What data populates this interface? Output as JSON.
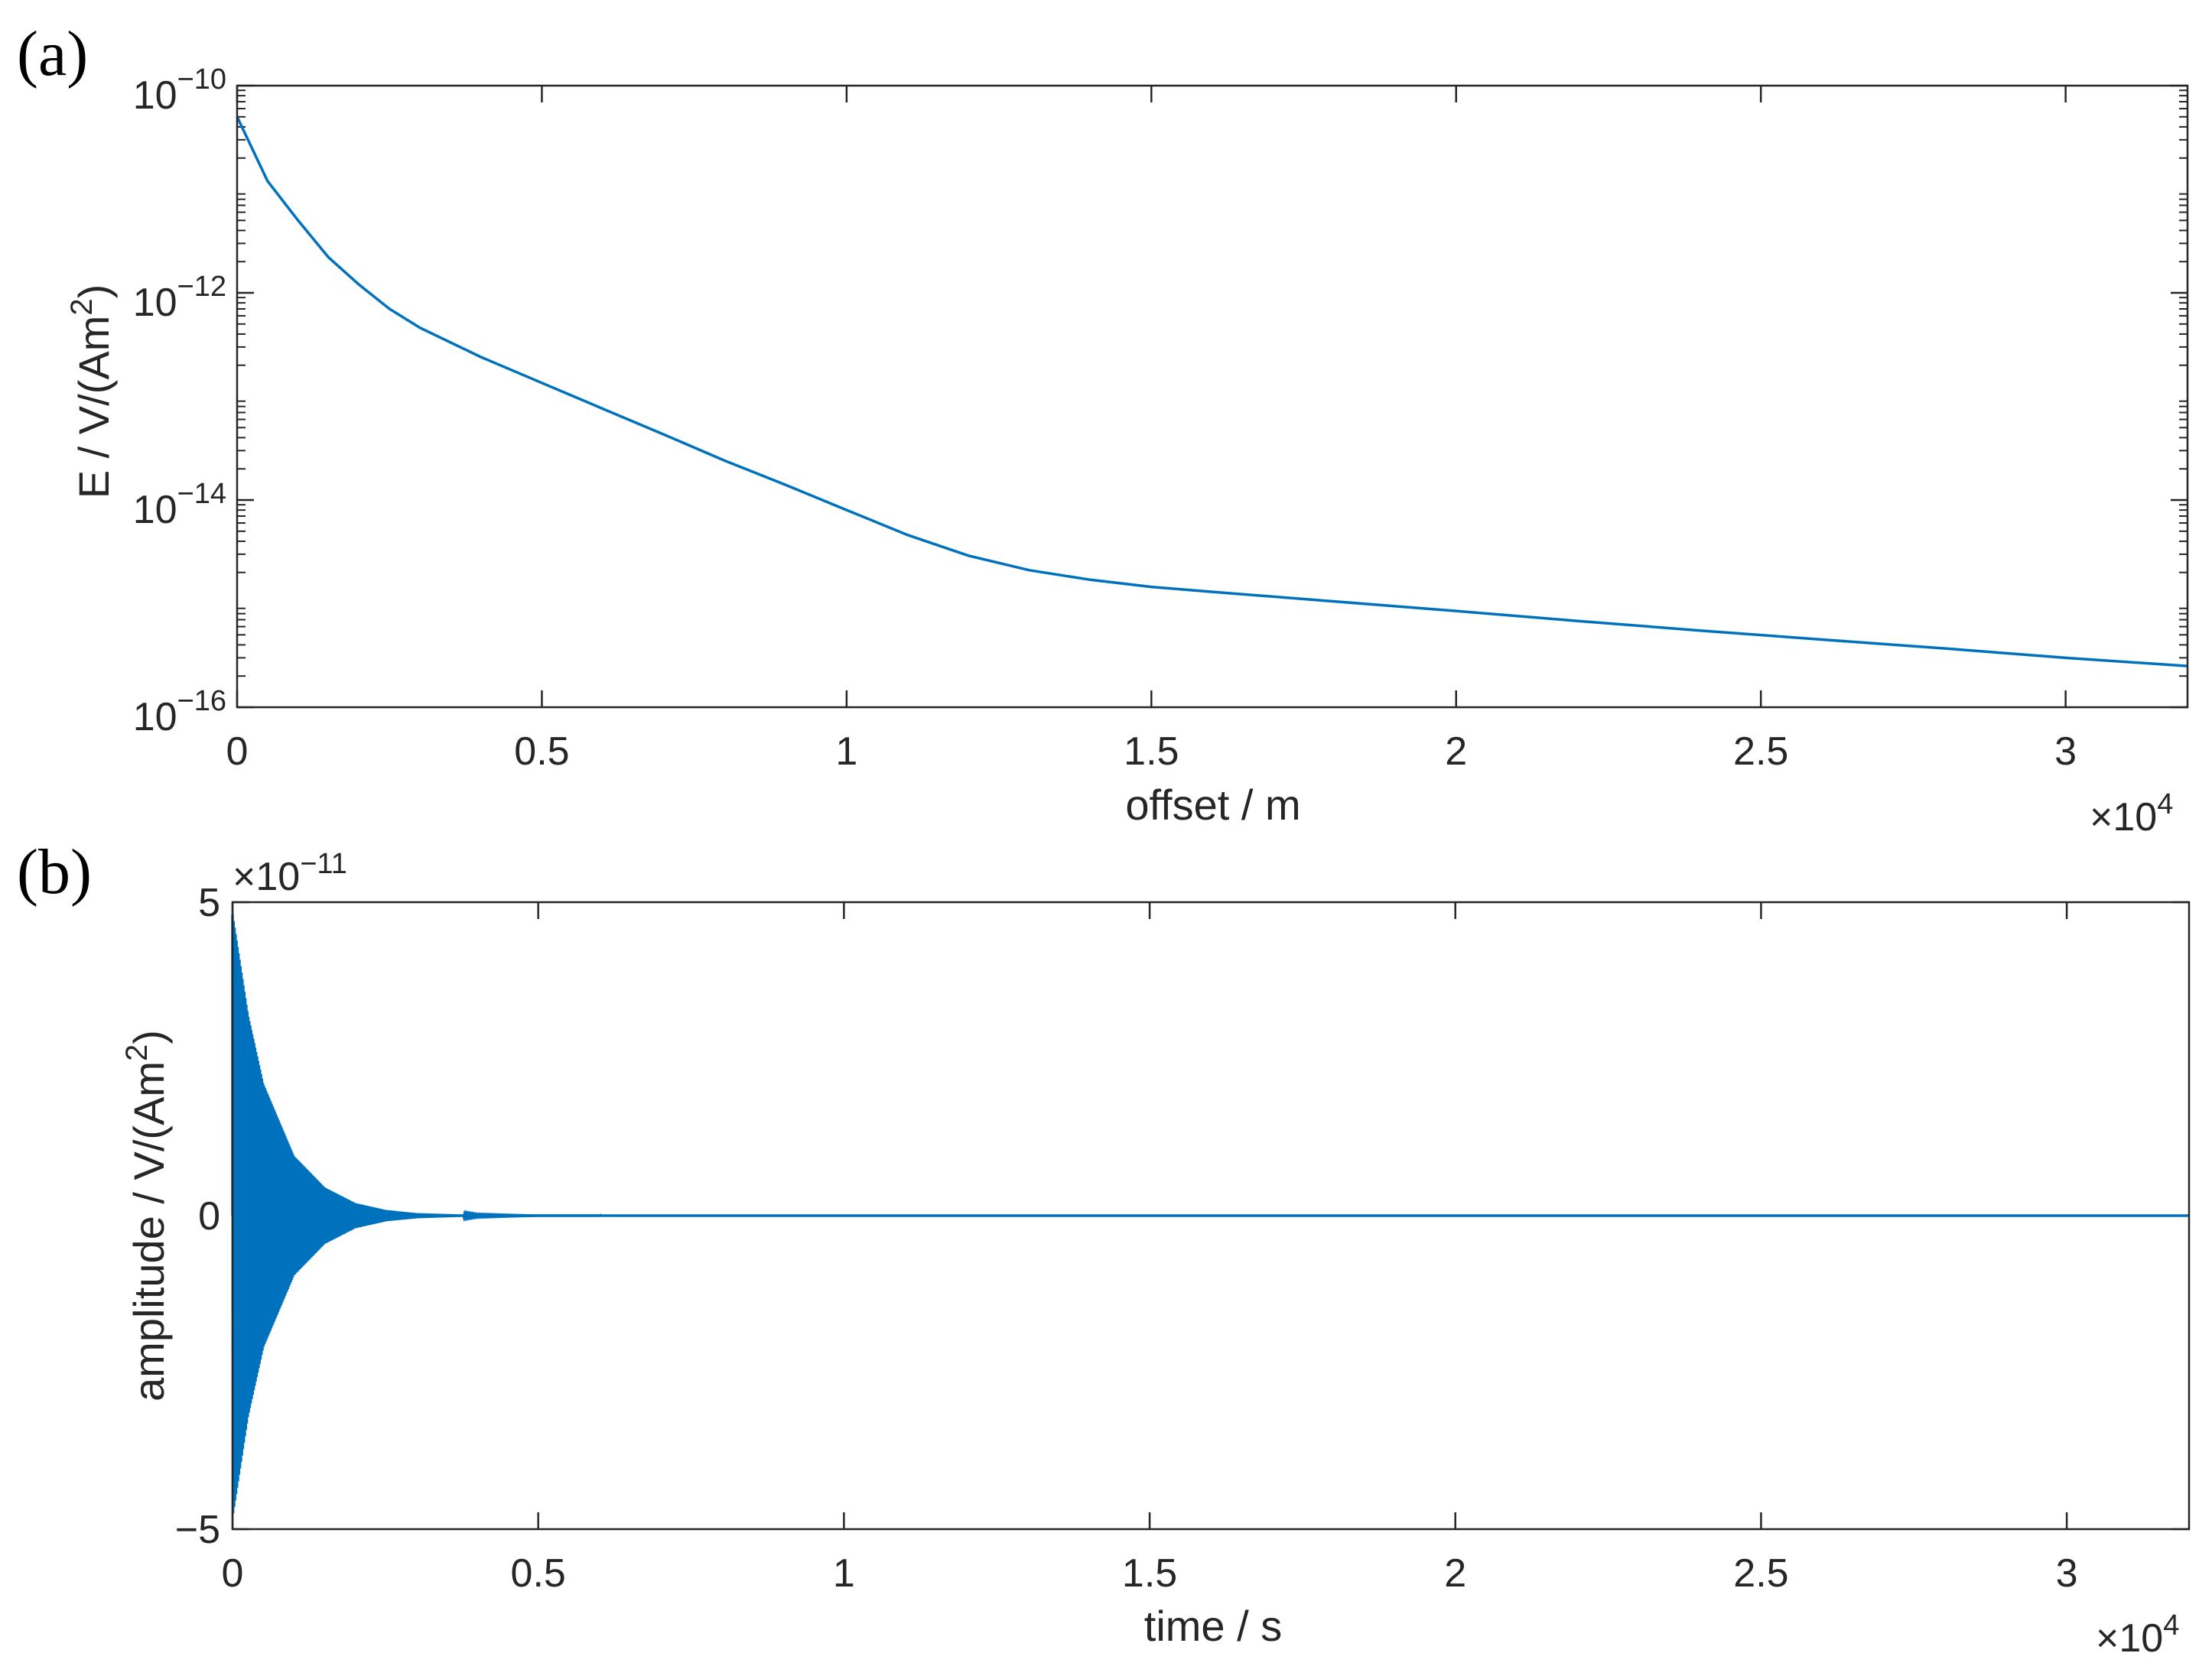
{
  "chart_data": [
    {
      "type": "line",
      "panel_label": "(a)",
      "title": "",
      "xlabel": "offset / m",
      "ylabel": "E / V/(Am²)",
      "ylabel_main": "E / V/(Am",
      "ylabel_sup": "2",
      "ylabel_close": ")",
      "x_multiplier": "×10",
      "x_multiplier_exp": "4",
      "x_scale": 10000,
      "xlim": [
        0,
        32000
      ],
      "ylim": [
        1e-16,
        1e-10
      ],
      "yscale": "log",
      "grid": false,
      "x_ticks": [
        0,
        5000,
        10000,
        15000,
        20000,
        25000,
        30000
      ],
      "x_tick_labels": [
        "0",
        "0.5",
        "1",
        "1.5",
        "2",
        "2.5",
        "3"
      ],
      "y_ticks": [
        1e-16,
        1e-14,
        1e-12,
        1e-10
      ],
      "y_tick_base": "10",
      "y_tick_exps": [
        "−16",
        "−14",
        "−12",
        "−10"
      ],
      "series": [
        {
          "color": "#0072bd",
          "x": [
            0,
            500,
            1000,
            1500,
            2000,
            2500,
            3000,
            4000,
            5000,
            6000,
            7000,
            8000,
            9000,
            10000,
            11000,
            12000,
            13000,
            14000,
            15000,
            16000,
            18000,
            20000,
            22000,
            24000,
            26000,
            28000,
            30000,
            32000
          ],
          "y": [
            5e-11,
            1.2e-11,
            5e-12,
            2.2e-12,
            1.2e-12,
            7e-13,
            4.6e-13,
            2.4e-13,
            1.35e-13,
            7.6e-14,
            4.3e-14,
            2.4e-14,
            1.4e-14,
            8e-15,
            4.6e-15,
            2.9e-15,
            2.1e-15,
            1.7e-15,
            1.45e-15,
            1.3e-15,
            1.05e-15,
            8.5e-16,
            6.8e-16,
            5.5e-16,
            4.5e-16,
            3.7e-16,
            3e-16,
            2.5e-16
          ]
        }
      ]
    },
    {
      "type": "line",
      "panel_label": "(b)",
      "title": "",
      "xlabel": "time / s",
      "ylabel": "amplitude / V/(Am²)",
      "ylabel_main": "amplitude / V/(Am",
      "ylabel_sup": "2",
      "ylabel_close": ")",
      "x_multiplier": "×10",
      "x_multiplier_exp": "4",
      "y_multiplier": "×10",
      "y_multiplier_exp": "−11",
      "x_scale": 10000,
      "y_scale": 1e-11,
      "xlim": [
        0,
        32000
      ],
      "ylim": [
        -5e-11,
        5e-11
      ],
      "grid": false,
      "x_ticks": [
        0,
        5000,
        10000,
        15000,
        20000,
        25000,
        30000
      ],
      "x_tick_labels": [
        "0",
        "0.5",
        "1",
        "1.5",
        "2",
        "2.5",
        "3"
      ],
      "y_ticks": [
        -5e-11,
        0,
        5e-11
      ],
      "y_tick_labels": [
        "−5",
        "0",
        "5"
      ],
      "series": [
        {
          "color": "#0072bd",
          "description_type": "decaying oscillation envelope",
          "t": [
            0,
            250,
            500,
            1000,
            1500,
            2000,
            2500,
            3000,
            4000,
            5000,
            32000
          ],
          "envelope": [
            4.8e-11,
            3.2e-11,
            2.1e-11,
            9.5e-12,
            4.5e-12,
            2e-12,
            9e-13,
            4e-13,
            8e-14,
            1e-14,
            0
          ]
        }
      ]
    }
  ]
}
